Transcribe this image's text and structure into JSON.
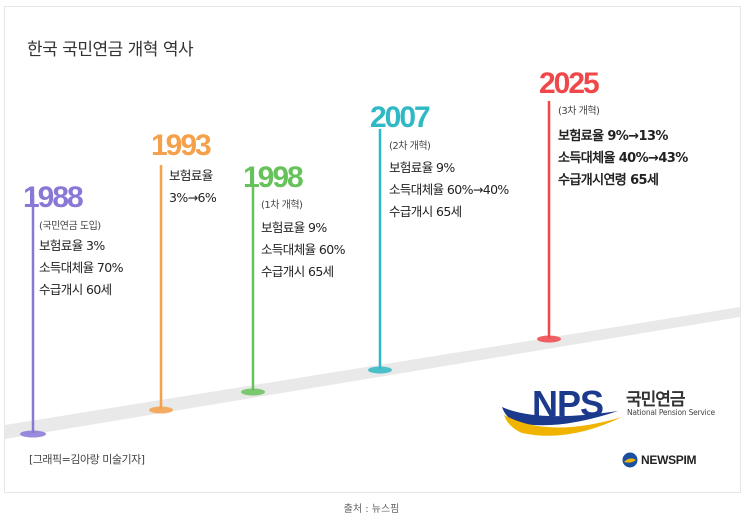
{
  "title": "한국 국민연금 개혁 역사",
  "milestones": [
    {
      "year": "1988",
      "subtitle": "(국민연금 도입)",
      "details": [
        "보험료율 3%",
        "소득대체율 70%",
        "수급개시 60세"
      ],
      "color": "#8a77d6"
    },
    {
      "year": "1993",
      "subtitle": "",
      "details": [
        "보험료율",
        "3%→6%"
      ],
      "color": "#f5a04a"
    },
    {
      "year": "1998",
      "subtitle": "(1차 개혁)",
      "details": [
        "보험료율 9%",
        "소득대체율 60%",
        "수급개시 65세"
      ],
      "color": "#66c25a"
    },
    {
      "year": "2007",
      "subtitle": "(2차 개혁)",
      "details": [
        "보험료율 9%",
        "소득대체율 60%→40%",
        "수급개시 65세"
      ],
      "color": "#2fb9c4"
    },
    {
      "year": "2025",
      "subtitle": "(3차 개혁)",
      "details": [
        "보험료율 9%→13%",
        "소득대체율 40%→43%",
        "수급개시연령 65세"
      ],
      "color": "#f0474a"
    }
  ],
  "credit": "[그래픽=김아랑 미술기자]",
  "logo": {
    "letters": "NPS",
    "name_kr": "국민연금",
    "name_en": "National Pension Service"
  },
  "newspim": "NEWSPIM",
  "source": "출처 : 뉴스핌"
}
